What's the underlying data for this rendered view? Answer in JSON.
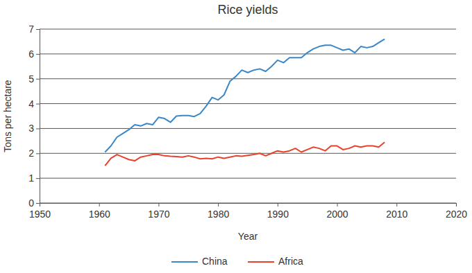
{
  "chart_data": {
    "type": "line",
    "title": "Rice yields",
    "x_label": "Year",
    "y_label": "Tons per hectare",
    "x": [
      1961,
      1962,
      1963,
      1964,
      1965,
      1966,
      1967,
      1968,
      1969,
      1970,
      1971,
      1972,
      1973,
      1974,
      1975,
      1976,
      1977,
      1978,
      1979,
      1980,
      1981,
      1982,
      1983,
      1984,
      1985,
      1986,
      1987,
      1988,
      1989,
      1990,
      1991,
      1992,
      1993,
      1994,
      1995,
      1996,
      1997,
      1998,
      1999,
      2000,
      2001,
      2002,
      2003,
      2004,
      2005,
      2006,
      2007,
      2008
    ],
    "series": [
      {
        "name": "China",
        "color": "#3a87c8",
        "values": [
          2.05,
          2.3,
          2.65,
          2.8,
          2.95,
          3.15,
          3.1,
          3.2,
          3.15,
          3.45,
          3.4,
          3.25,
          3.5,
          3.52,
          3.52,
          3.48,
          3.6,
          3.9,
          4.25,
          4.15,
          4.35,
          4.9,
          5.1,
          5.35,
          5.25,
          5.35,
          5.4,
          5.3,
          5.5,
          5.75,
          5.65,
          5.85,
          5.85,
          5.85,
          6.05,
          6.2,
          6.3,
          6.35,
          6.35,
          6.25,
          6.15,
          6.2,
          6.05,
          6.3,
          6.25,
          6.3,
          6.45,
          6.6
        ]
      },
      {
        "name": "Africa",
        "color": "#e8412c",
        "values": [
          1.5,
          1.8,
          1.95,
          1.85,
          1.75,
          1.7,
          1.85,
          1.9,
          1.95,
          1.95,
          1.9,
          1.88,
          1.87,
          1.85,
          1.9,
          1.85,
          1.78,
          1.8,
          1.78,
          1.85,
          1.8,
          1.85,
          1.9,
          1.88,
          1.92,
          1.95,
          2.0,
          1.9,
          2.0,
          2.1,
          2.05,
          2.1,
          2.2,
          2.05,
          2.15,
          2.25,
          2.2,
          2.1,
          2.3,
          2.3,
          2.15,
          2.2,
          2.3,
          2.25,
          2.3,
          2.3,
          2.25,
          2.45
        ]
      }
    ],
    "xlim": [
      1950,
      2020
    ],
    "xticks": [
      1950,
      1960,
      1970,
      1980,
      1990,
      2000,
      2010,
      2020
    ],
    "ylim": [
      0,
      7
    ],
    "yticks": [
      0,
      1,
      2,
      3,
      4,
      5,
      6,
      7
    ],
    "grid": true,
    "legend": "bottom"
  }
}
